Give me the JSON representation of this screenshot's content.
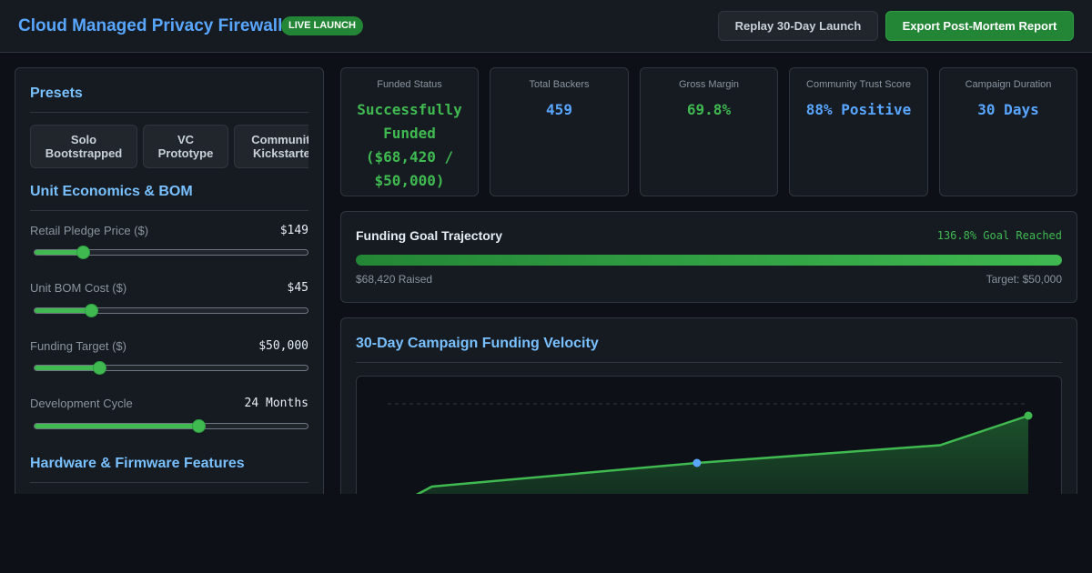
{
  "header": {
    "title": "Cloud Managed Privacy Firewall",
    "badge": "LIVE LAUNCH",
    "replay_label": "Replay 30-Day Launch",
    "export_label": "Export Post-Mortem Report"
  },
  "sidebar": {
    "presets_title": "Presets",
    "presets": [
      {
        "line1": "Solo",
        "line2": "Bootstrapped"
      },
      {
        "line1": "VC",
        "line2": "Prototype"
      },
      {
        "line1": "Community",
        "line2": "Kickstarter"
      }
    ],
    "unit_econ_title": "Unit Economics & BOM",
    "sliders": [
      {
        "label": "Retail Pledge Price ($)",
        "value": "$149",
        "fraction": 0.18
      },
      {
        "label": "Unit BOM Cost ($)",
        "value": "$45",
        "fraction": 0.21
      },
      {
        "label": "Funding Target ($)",
        "value": "$50,000",
        "fraction": 0.24
      },
      {
        "label": "Development Cycle",
        "value": "24 Months",
        "fraction": 0.6
      }
    ],
    "hardware_title": "Hardware & Firmware Features"
  },
  "stats": [
    {
      "label": "Funded Status",
      "value": "Successfully Funded ($68,420 / $50,000)",
      "tone": "green"
    },
    {
      "label": "Total Backers",
      "value": "459",
      "tone": "blue"
    },
    {
      "label": "Gross Margin",
      "value": "69.8%",
      "tone": "green"
    },
    {
      "label": "Community Trust Score",
      "value": "88% Positive",
      "tone": "blue"
    },
    {
      "label": "Campaign Duration",
      "value": "30 Days",
      "tone": "blue"
    }
  ],
  "goal": {
    "title": "Funding Goal Trajectory",
    "reached": "136.8% Goal Reached",
    "raised": "$68,420 Raised",
    "target": "Target: $50,000",
    "progress": 1.0
  },
  "velocity": {
    "title": "30-Day Campaign Funding Velocity"
  },
  "colors": {
    "accent_green": "#3fb950",
    "accent_blue": "#58a6ff",
    "background": "#0d1117",
    "panel": "#161b22"
  },
  "chart_data": {
    "type": "area",
    "title": "30-Day Campaign Funding Velocity",
    "x": [
      1,
      3,
      15,
      26,
      30
    ],
    "y": [
      10,
      30,
      50,
      65,
      90
    ],
    "highlight_points": [
      15,
      30
    ],
    "ylim": [
      0,
      100
    ],
    "xlim": [
      1,
      30
    ],
    "grid": false,
    "target_line": 100
  }
}
